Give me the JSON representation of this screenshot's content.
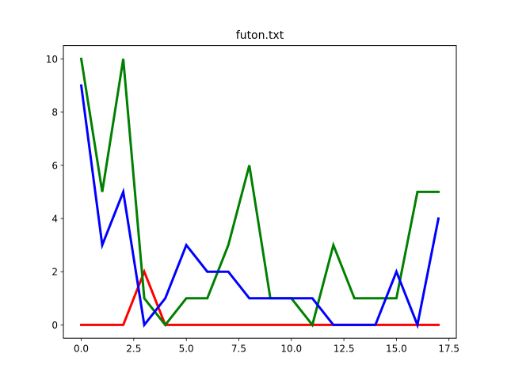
{
  "chart_data": {
    "type": "line",
    "title": "futon.txt",
    "xlabel": "",
    "ylabel": "",
    "xlim": [
      -0.85,
      17.85
    ],
    "ylim": [
      -0.5,
      10.5
    ],
    "xticks": [
      0.0,
      2.5,
      5.0,
      7.5,
      10.0,
      12.5,
      15.0,
      17.5
    ],
    "xtick_labels": [
      "0.0",
      "2.5",
      "5.0",
      "7.5",
      "10.0",
      "12.5",
      "15.0",
      "17.5"
    ],
    "yticks": [
      0,
      2,
      4,
      6,
      8,
      10
    ],
    "ytick_labels": [
      "0",
      "2",
      "4",
      "6",
      "8",
      "10"
    ],
    "grid": false,
    "legend": "none",
    "x": [
      0,
      1,
      2,
      3,
      4,
      5,
      6,
      7,
      8,
      9,
      10,
      11,
      12,
      13,
      14,
      15,
      16,
      17
    ],
    "series": [
      {
        "color": "#ff0000",
        "values": [
          0,
          0,
          0,
          2,
          0,
          0,
          0,
          0,
          0,
          0,
          0,
          0,
          0,
          0,
          0,
          0,
          0,
          0
        ]
      },
      {
        "color": "#008000",
        "values": [
          10,
          5,
          10,
          1,
          0,
          1,
          1,
          3,
          6,
          1,
          1,
          0,
          3,
          1,
          1,
          1,
          5,
          5
        ]
      },
      {
        "color": "#0000ff",
        "values": [
          9,
          3,
          5,
          0,
          1,
          3,
          2,
          2,
          1,
          1,
          1,
          1,
          0,
          0,
          0,
          2,
          0,
          4
        ]
      }
    ]
  }
}
